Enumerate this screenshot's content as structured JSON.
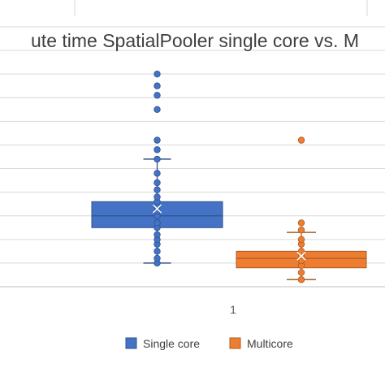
{
  "chart_data": {
    "type": "box",
    "title": "ute time SpatialPooler single core vs. M",
    "categories": [
      "1"
    ],
    "xlabel": "",
    "ylabel": "",
    "ylim": [
      0,
      11
    ],
    "grid": true,
    "legend_position": "bottom",
    "series": [
      {
        "name": "Single core",
        "color": "#4472C4",
        "box": {
          "min": 1.0,
          "q1": 2.5,
          "median": 3.0,
          "mean": 3.3,
          "q3": 3.6,
          "max": 5.4
        },
        "points": [
          1.0,
          1.2,
          1.5,
          1.8,
          2.0,
          2.2,
          2.5,
          2.7,
          3.0,
          3.2,
          3.4,
          3.6,
          3.8,
          4.1,
          4.4,
          4.8,
          5.4,
          5.8,
          6.2,
          7.5,
          8.1,
          8.5,
          9.0
        ]
      },
      {
        "name": "Multicore",
        "color": "#ED7D31",
        "box": {
          "min": 0.3,
          "q1": 0.8,
          "median": 1.2,
          "mean": 1.3,
          "q3": 1.5,
          "max": 2.3
        },
        "points": [
          0.3,
          0.6,
          0.9,
          1.1,
          1.3,
          1.5,
          1.8,
          2.0,
          2.4,
          2.7,
          6.2
        ]
      }
    ]
  }
}
